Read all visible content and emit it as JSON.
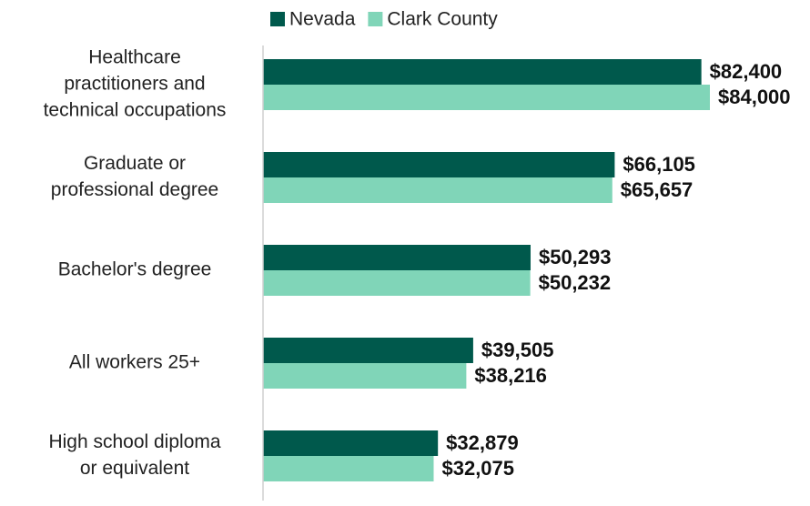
{
  "chart_data": {
    "type": "bar",
    "orientation": "horizontal",
    "categories": [
      [
        "Healthcare",
        "practitioners and",
        "technical occupations"
      ],
      [
        "Graduate or",
        "professional degree"
      ],
      [
        "Bachelor's degree"
      ],
      [
        "All workers 25+"
      ],
      [
        "High school diploma",
        "or equivalent"
      ]
    ],
    "series": [
      {
        "name": "Nevada",
        "color": "#00594c",
        "values": [
          82400,
          66105,
          50293,
          39505,
          32879
        ],
        "value_labels": [
          "$82,400",
          "$66,105",
          "$50,293",
          "$39,505",
          "$32,879"
        ]
      },
      {
        "name": "Clark County",
        "color": "#80d5b8",
        "values": [
          84000,
          65657,
          50232,
          38216,
          32075
        ],
        "value_labels": [
          "$84,000",
          "$65,657",
          "$50,232",
          "$38,216",
          "$32,075"
        ]
      }
    ],
    "legend": "top"
  }
}
